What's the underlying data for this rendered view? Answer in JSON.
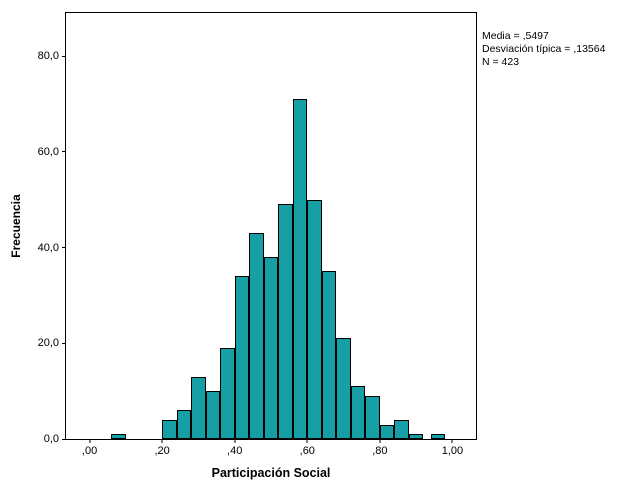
{
  "figure": {
    "xlabel": "Participación Social",
    "ylabel": "Frecuencia",
    "stats": {
      "line1": "Media = ,5497",
      "line2": "Desviación típica = ,13564",
      "line3": "N = 423"
    }
  },
  "colors": {
    "bar_fill": "#16A0A5",
    "bar_edge": "#000000",
    "frame": "#000000"
  },
  "chart_data": {
    "type": "bar",
    "subtype": "histogram",
    "title": "",
    "xlabel": "Participación Social",
    "ylabel": "Frecuencia",
    "grid": false,
    "legend": "none",
    "bin_width": 0.04,
    "bins": [
      {
        "x": 0.06,
        "count": 1
      },
      {
        "x": 0.2,
        "count": 4
      },
      {
        "x": 0.24,
        "count": 6
      },
      {
        "x": 0.28,
        "count": 13
      },
      {
        "x": 0.32,
        "count": 10
      },
      {
        "x": 0.36,
        "count": 19
      },
      {
        "x": 0.4,
        "count": 34
      },
      {
        "x": 0.44,
        "count": 43
      },
      {
        "x": 0.48,
        "count": 38
      },
      {
        "x": 0.52,
        "count": 49
      },
      {
        "x": 0.56,
        "count": 71
      },
      {
        "x": 0.6,
        "count": 50
      },
      {
        "x": 0.64,
        "count": 35
      },
      {
        "x": 0.68,
        "count": 21
      },
      {
        "x": 0.72,
        "count": 11
      },
      {
        "x": 0.76,
        "count": 9
      },
      {
        "x": 0.8,
        "count": 3
      },
      {
        "x": 0.84,
        "count": 4
      },
      {
        "x": 0.88,
        "count": 1
      },
      {
        "x": 0.94,
        "count": 1
      }
    ],
    "x_ticks": [
      {
        "value": 0.0,
        "label": ",00"
      },
      {
        "value": 0.2,
        "label": ",20"
      },
      {
        "value": 0.4,
        "label": ",40"
      },
      {
        "value": 0.6,
        "label": ",60"
      },
      {
        "value": 0.8,
        "label": ",80"
      },
      {
        "value": 1.0,
        "label": "1,00"
      }
    ],
    "y_ticks": [
      {
        "value": 0,
        "label": "0,0"
      },
      {
        "value": 20,
        "label": "20,0"
      },
      {
        "value": 40,
        "label": "40,0"
      },
      {
        "value": 60,
        "label": "60,0"
      },
      {
        "value": 80,
        "label": "80,0"
      }
    ],
    "x_range": [
      -0.065,
      1.065
    ],
    "y_range": [
      0,
      89
    ],
    "annotations": [
      "Media = ,5497",
      "Desviación típica = ,13564",
      "N = 423"
    ]
  }
}
